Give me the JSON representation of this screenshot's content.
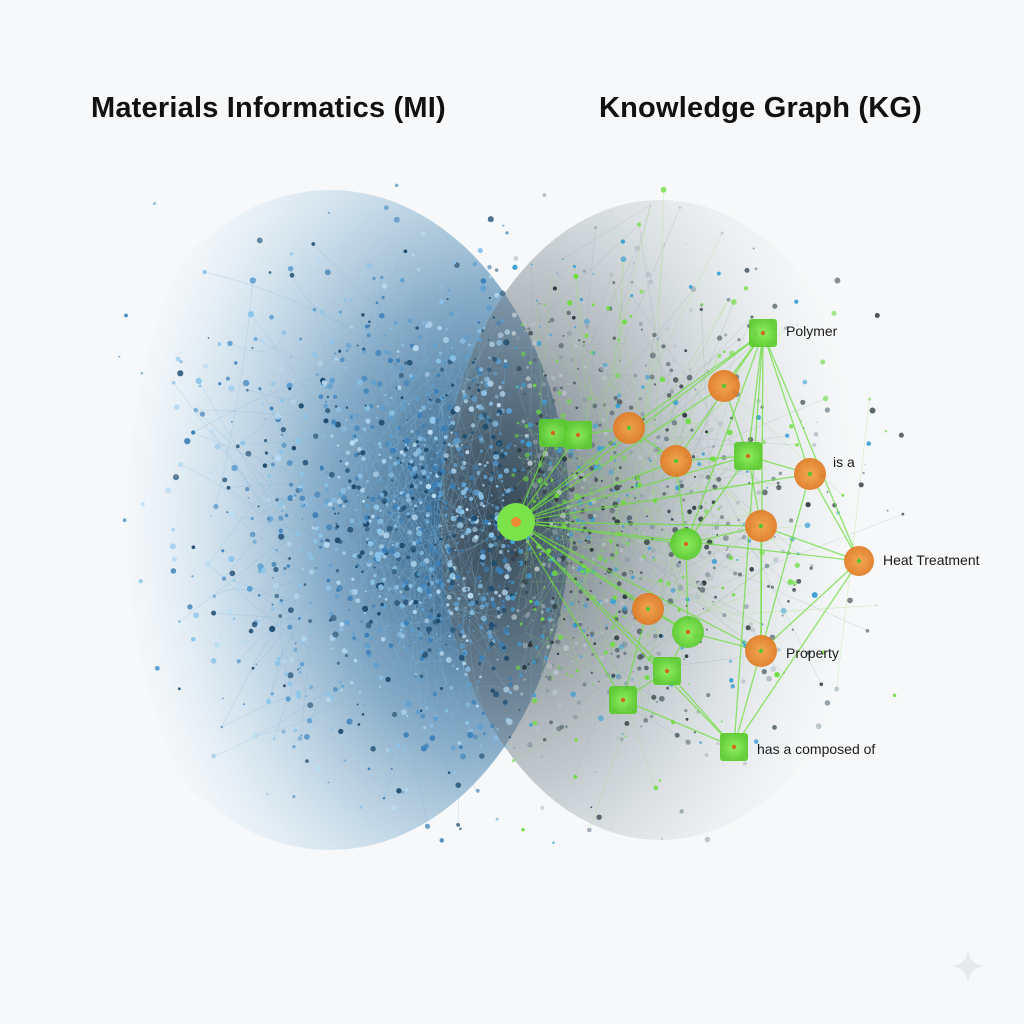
{
  "titles": {
    "left": "Materials Informatics (MI)",
    "right": "Knowledge Graph (KG)"
  },
  "kg_labels": {
    "polymer": "Polymer",
    "is_a": "is a",
    "heat_treatment": "Heat Treatment",
    "property": "Property",
    "has_composed_of": "has a composed of"
  },
  "colors": {
    "background": "#f6f8f9",
    "mi_dark": "#1c4a6e",
    "mi_mid": "#3b7fb8",
    "mi_light": "#8cc4ea",
    "kg_green": "#6fdc3f",
    "kg_orange": "#ee8a32",
    "kg_grey": "#8a9aa3"
  },
  "icons": {
    "hub": "hub-node-icon",
    "concept": "square-concept-node-icon",
    "entity": "round-entity-node-icon",
    "corner": "sparkle-icon"
  }
}
